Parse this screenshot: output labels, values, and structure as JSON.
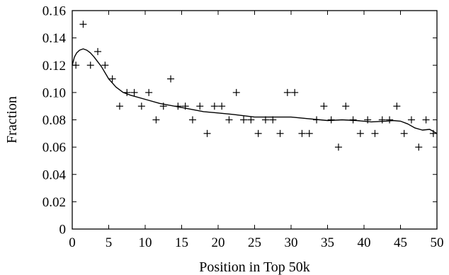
{
  "chart_data": {
    "type": "scatter",
    "title": "",
    "xlabel": "Position in Top 50k",
    "ylabel": "Fraction",
    "xlim": [
      0,
      50
    ],
    "ylim": [
      0,
      0.16
    ],
    "x_ticks": [
      "0",
      "5",
      "10",
      "15",
      "20",
      "25",
      "30",
      "35",
      "40",
      "45",
      "50"
    ],
    "y_ticks": [
      "0",
      "0.02",
      "0.04",
      "0.06",
      "0.08",
      "0.10",
      "0.12",
      "0.14",
      "0.16"
    ],
    "grid": false,
    "legend": "none",
    "series": [
      {
        "marker": "+",
        "color": "#000000",
        "points": [
          [
            0.5,
            0.12
          ],
          [
            1.5,
            0.15
          ],
          [
            2.5,
            0.12
          ],
          [
            3.5,
            0.13
          ],
          [
            4.5,
            0.12
          ],
          [
            5.5,
            0.11
          ],
          [
            6.5,
            0.09
          ],
          [
            7.5,
            0.1
          ],
          [
            8.5,
            0.1
          ],
          [
            9.5,
            0.09
          ],
          [
            10.5,
            0.1
          ],
          [
            11.5,
            0.08
          ],
          [
            12.5,
            0.09
          ],
          [
            13.5,
            0.11
          ],
          [
            14.5,
            0.09
          ],
          [
            15.5,
            0.09
          ],
          [
            16.5,
            0.08
          ],
          [
            17.5,
            0.09
          ],
          [
            18.5,
            0.07
          ],
          [
            19.5,
            0.09
          ],
          [
            20.5,
            0.09
          ],
          [
            21.5,
            0.08
          ],
          [
            22.5,
            0.1
          ],
          [
            23.5,
            0.08
          ],
          [
            24.5,
            0.08
          ],
          [
            25.5,
            0.07
          ],
          [
            26.5,
            0.08
          ],
          [
            27.5,
            0.08
          ],
          [
            28.5,
            0.07
          ],
          [
            29.5,
            0.1
          ],
          [
            30.5,
            0.1
          ],
          [
            31.5,
            0.07
          ],
          [
            32.5,
            0.07
          ],
          [
            33.5,
            0.08
          ],
          [
            34.5,
            0.09
          ],
          [
            35.5,
            0.08
          ],
          [
            36.5,
            0.06
          ],
          [
            37.5,
            0.09
          ],
          [
            38.5,
            0.08
          ],
          [
            39.5,
            0.07
          ],
          [
            40.5,
            0.08
          ],
          [
            41.5,
            0.07
          ],
          [
            42.5,
            0.08
          ],
          [
            43.5,
            0.08
          ],
          [
            44.5,
            0.09
          ],
          [
            45.5,
            0.07
          ],
          [
            46.5,
            0.08
          ],
          [
            47.5,
            0.06
          ],
          [
            48.5,
            0.08
          ],
          [
            49.5,
            0.07
          ]
        ]
      },
      {
        "style": "smooth-line",
        "color": "#000000",
        "points": [
          [
            0,
            0.12
          ],
          [
            0.3,
            0.126
          ],
          [
            0.6,
            0.129
          ],
          [
            1.0,
            0.131
          ],
          [
            1.5,
            0.132
          ],
          [
            2.0,
            0.131
          ],
          [
            2.5,
            0.129
          ],
          [
            3.0,
            0.126
          ],
          [
            4.0,
            0.119
          ],
          [
            5.0,
            0.11
          ],
          [
            6.0,
            0.104
          ],
          [
            7.0,
            0.1
          ],
          [
            8.0,
            0.098
          ],
          [
            10.0,
            0.095
          ],
          [
            12.0,
            0.092
          ],
          [
            15.0,
            0.089
          ],
          [
            18.0,
            0.086
          ],
          [
            20.0,
            0.085
          ],
          [
            22.0,
            0.084
          ],
          [
            25.0,
            0.082
          ],
          [
            28.0,
            0.082
          ],
          [
            30.0,
            0.082
          ],
          [
            32.0,
            0.081
          ],
          [
            34.0,
            0.08
          ],
          [
            35.0,
            0.0795
          ],
          [
            37.0,
            0.08
          ],
          [
            39.0,
            0.0795
          ],
          [
            41.0,
            0.0785
          ],
          [
            43.0,
            0.079
          ],
          [
            44.0,
            0.0795
          ],
          [
            45.0,
            0.079
          ],
          [
            46.0,
            0.077
          ],
          [
            47.0,
            0.074
          ],
          [
            48.0,
            0.0725
          ],
          [
            49.0,
            0.073
          ],
          [
            50.0,
            0.07
          ]
        ]
      }
    ]
  }
}
